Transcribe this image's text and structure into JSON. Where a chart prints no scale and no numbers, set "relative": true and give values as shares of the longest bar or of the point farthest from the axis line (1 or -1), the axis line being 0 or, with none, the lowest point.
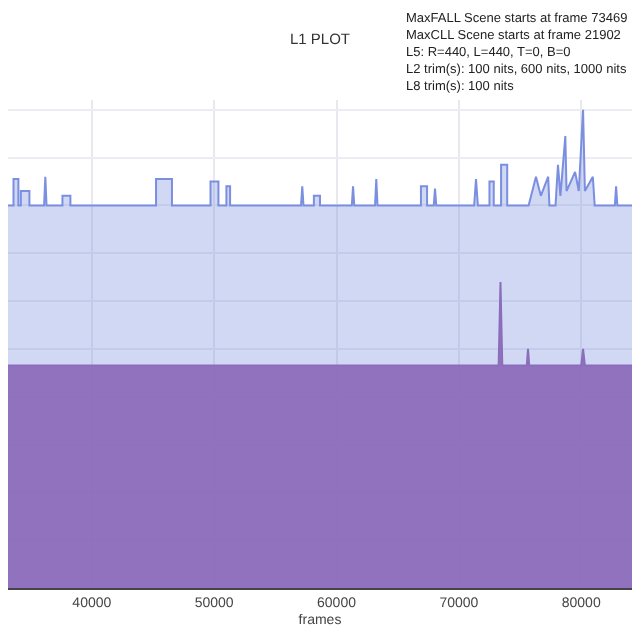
{
  "chart_data": {
    "type": "area",
    "title": "L1 PLOT",
    "xlabel": "frames",
    "relative": true,
    "tick_labels": "x",
    "grid": true,
    "annotations": [
      "MaxFALL Scene starts at frame 73469\nMaxCLL Scene starts at frame 21902\nL5: R=440, L=440, T=0, B=0\nL2 trim(s): 100 nits, 600 nits, 1000 nits\nL8 trim(s): 100 nits"
    ],
    "xlim": [
      33150,
      84150
    ],
    "xticks": [
      40000,
      50000,
      60000,
      70000,
      80000
    ],
    "series": [
      {
        "color": "#7b8fe0",
        "x": [
          33150,
          33600,
          33600,
          34000,
          34000,
          34200,
          34200,
          34900,
          34900,
          36100,
          36200,
          36300,
          37600,
          37600,
          38250,
          38250,
          45250,
          45250,
          46550,
          46550,
          49700,
          49700,
          50350,
          50350,
          51000,
          51000,
          51300,
          51300,
          57100,
          57200,
          57300,
          58150,
          58150,
          58650,
          58650,
          61250,
          61350,
          61450,
          63150,
          63250,
          63350,
          66900,
          66900,
          67400,
          67400,
          67950,
          68050,
          68150,
          71250,
          71400,
          71550,
          72500,
          72500,
          72850,
          72850,
          73450,
          73450,
          73950,
          73950,
          75700,
          76300,
          76700,
          77300,
          77400,
          77900,
          78100,
          78300,
          78700,
          78800,
          79500,
          79800,
          80150,
          80300,
          80950,
          81100,
          82750,
          82850,
          82950,
          84150
        ],
        "values": [
          0.8,
          0.8,
          0.855,
          0.855,
          0.8,
          0.8,
          0.83,
          0.83,
          0.8,
          0.8,
          0.86,
          0.8,
          0.8,
          0.82,
          0.82,
          0.8,
          0.8,
          0.855,
          0.855,
          0.8,
          0.8,
          0.85,
          0.85,
          0.8,
          0.8,
          0.84,
          0.84,
          0.8,
          0.8,
          0.84,
          0.8,
          0.8,
          0.82,
          0.82,
          0.8,
          0.8,
          0.84,
          0.8,
          0.8,
          0.855,
          0.8,
          0.8,
          0.84,
          0.84,
          0.8,
          0.8,
          0.835,
          0.8,
          0.8,
          0.855,
          0.8,
          0.8,
          0.85,
          0.85,
          0.8,
          0.8,
          0.885,
          0.885,
          0.8,
          0.8,
          0.86,
          0.82,
          0.86,
          0.8,
          0.8,
          0.885,
          0.82,
          0.945,
          0.83,
          0.87,
          0.83,
          1.0,
          0.83,
          0.86,
          0.8,
          0.8,
          0.84,
          0.8,
          0.8
        ]
      },
      {
        "color": "#8c6dbb",
        "x": [
          33150,
          73250,
          73400,
          73550,
          75550,
          75650,
          75750,
          80000,
          80150,
          80300,
          84150
        ],
        "values": [
          0.465,
          0.465,
          0.64,
          0.465,
          0.465,
          0.5,
          0.465,
          0.465,
          0.5,
          0.465,
          0.465
        ]
      }
    ]
  }
}
